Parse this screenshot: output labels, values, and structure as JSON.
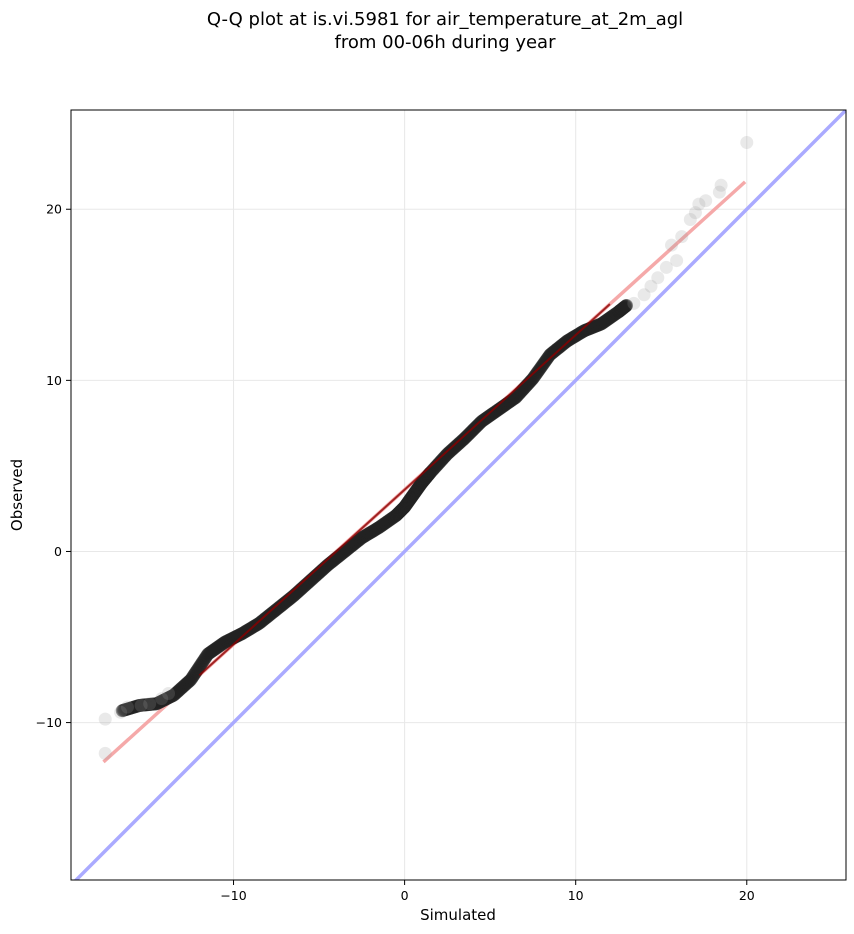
{
  "chart_data": {
    "type": "scatter",
    "title_line1": "Q-Q plot at is.vi.5981 for air_temperature_at_2m_agl",
    "title_line2": "from 00-06h during year",
    "xlabel": "Simulated",
    "ylabel": "Observed",
    "xlim": [
      -19.5,
      25.8
    ],
    "ylim": [
      -19.2,
      25.8
    ],
    "xticks": [
      -10,
      0,
      10,
      20
    ],
    "yticks": [
      -10,
      0,
      10,
      20
    ],
    "xtick_labels": [
      "−10",
      "0",
      "10",
      "20"
    ],
    "ytick_labels": [
      "−10",
      "0",
      "10",
      "20"
    ],
    "grid": true,
    "identity_line": {
      "color": "#aaaaff",
      "x": [
        -19.5,
        25.8
      ],
      "y": [
        -19.5,
        25.8
      ]
    },
    "fit_line": {
      "color": "#f4a4a4",
      "x": [
        -17.6,
        19.9
      ],
      "y": [
        -12.3,
        21.6
      ]
    },
    "quantile_curve": {
      "x": [
        -16.5,
        -15.5,
        -14.5,
        -13.5,
        -12.5,
        -11.5,
        -10.5,
        -9.5,
        -8.5,
        -7.5,
        -6.5,
        -5.5,
        -4.5,
        -3.5,
        -2.5,
        -1.5,
        -0.5,
        0.0,
        0.5,
        1.0,
        1.5,
        2.5,
        3.5,
        4.5,
        5.5,
        6.5,
        7.5,
        8.5,
        9.5,
        10.5,
        11.5,
        12.5,
        13.0
      ],
      "y": [
        -9.3,
        -9.0,
        -8.9,
        -8.4,
        -7.5,
        -6.0,
        -5.3,
        -4.8,
        -4.2,
        -3.4,
        -2.6,
        -1.7,
        -0.8,
        0.0,
        0.8,
        1.4,
        2.1,
        2.6,
        3.3,
        4.0,
        4.6,
        5.7,
        6.6,
        7.6,
        8.3,
        9.0,
        10.1,
        11.5,
        12.3,
        12.9,
        13.3,
        14.0,
        14.4
      ]
    },
    "tail_points": [
      {
        "x": -17.5,
        "y": -11.8
      },
      {
        "x": -17.5,
        "y": -9.8
      },
      {
        "x": -16.6,
        "y": -9.4
      },
      {
        "x": -16.2,
        "y": -9.1
      },
      {
        "x": -15.4,
        "y": -9.0
      },
      {
        "x": -14.9,
        "y": -8.9
      },
      {
        "x": -14.2,
        "y": -8.6
      },
      {
        "x": -13.8,
        "y": -8.3
      },
      {
        "x": 13.4,
        "y": 14.5
      },
      {
        "x": 14.0,
        "y": 15.0
      },
      {
        "x": 14.4,
        "y": 15.5
      },
      {
        "x": 14.8,
        "y": 16.0
      },
      {
        "x": 15.3,
        "y": 16.6
      },
      {
        "x": 15.9,
        "y": 17.0
      },
      {
        "x": 15.6,
        "y": 17.9
      },
      {
        "x": 16.2,
        "y": 18.4
      },
      {
        "x": 16.7,
        "y": 19.4
      },
      {
        "x": 17.0,
        "y": 19.8
      },
      {
        "x": 17.2,
        "y": 20.3
      },
      {
        "x": 17.6,
        "y": 20.5
      },
      {
        "x": 18.4,
        "y": 21.0
      },
      {
        "x": 18.5,
        "y": 21.4
      },
      {
        "x": 20.0,
        "y": 23.9
      }
    ]
  }
}
